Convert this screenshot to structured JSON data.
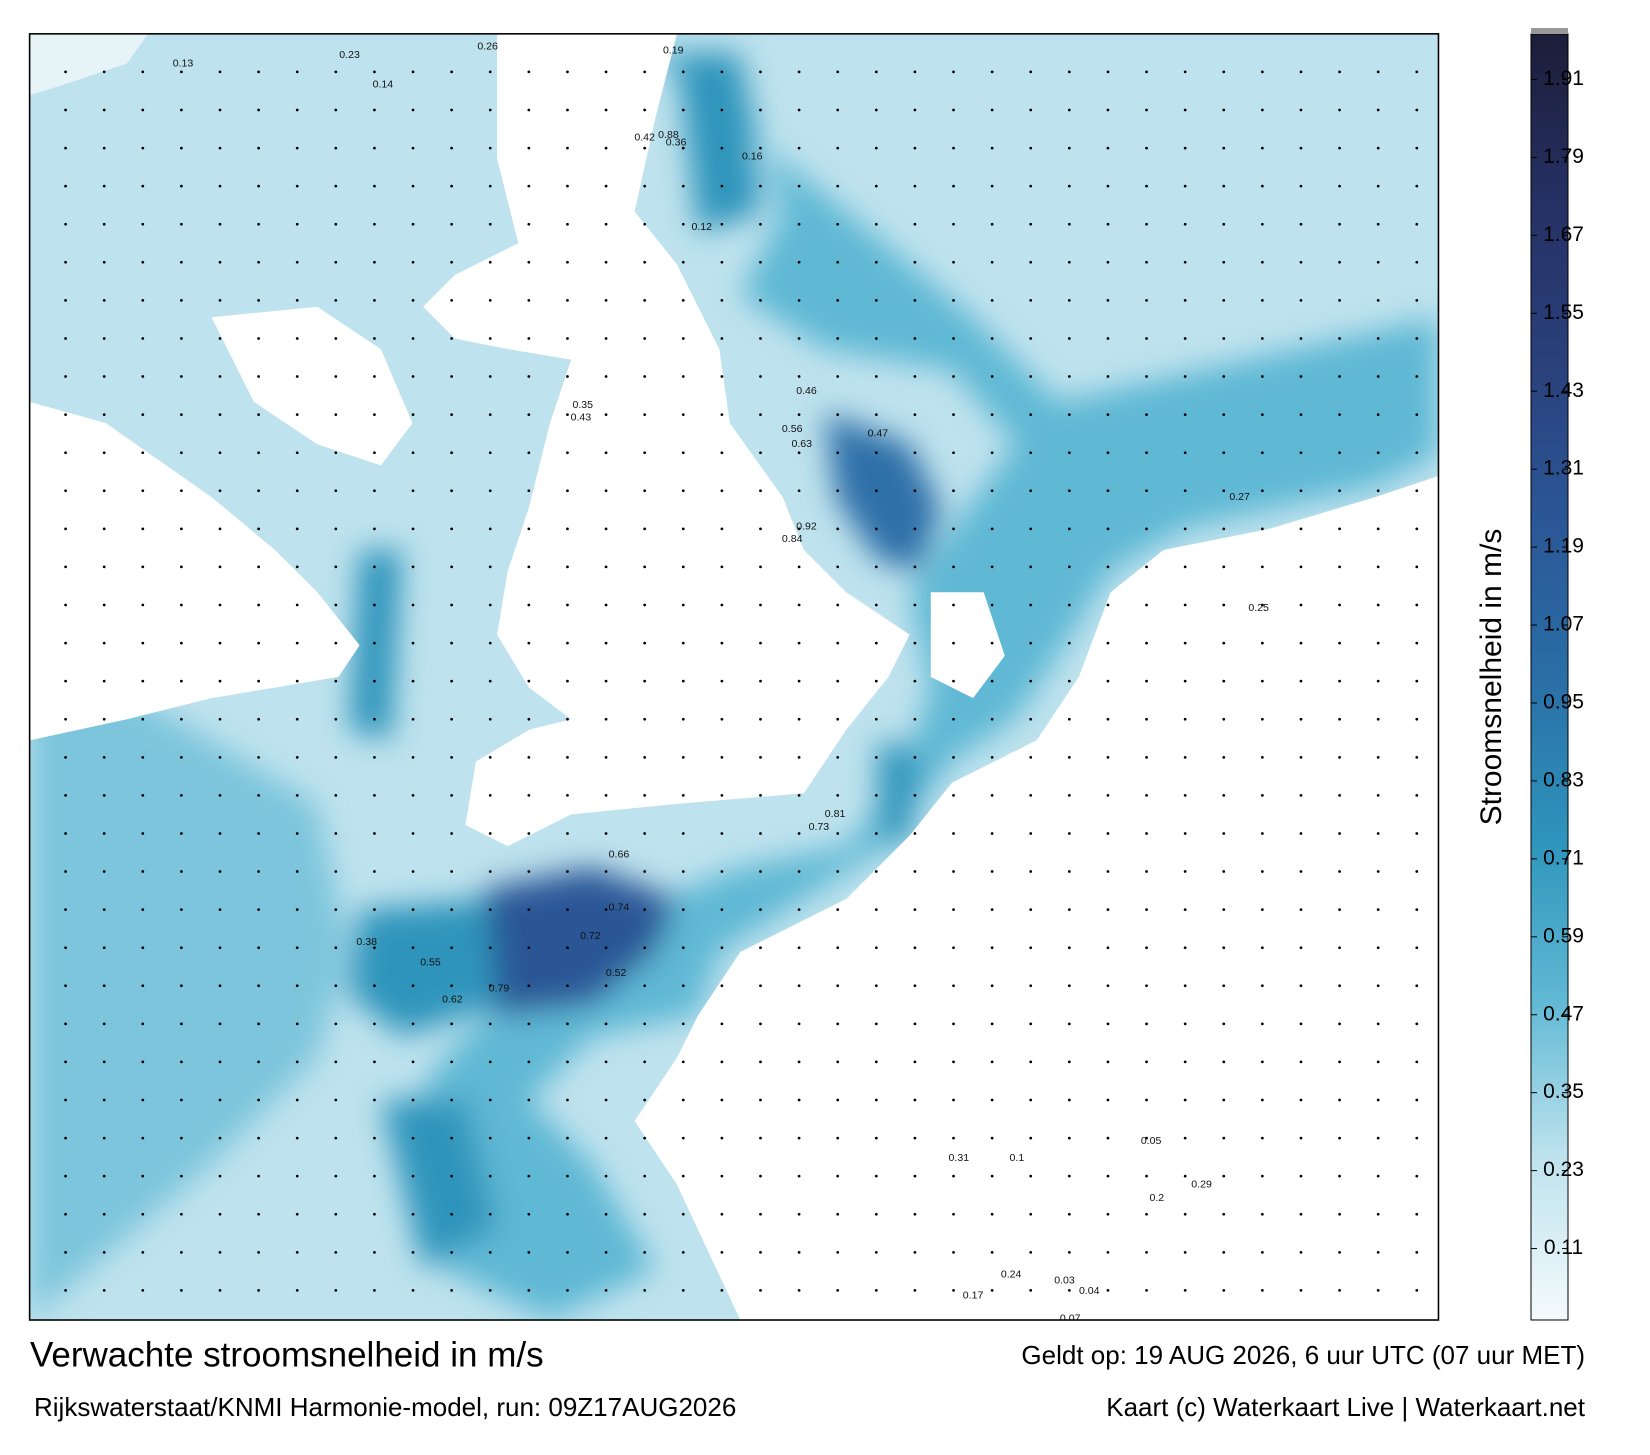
{
  "chart_data": {
    "type": "map",
    "title": "Verwachte stroomsnelheid in m/s",
    "subtitle": "Rijkswaterstaat/KNMI Harmonie-model, run: 09Z17AUG2026",
    "valid_time": "Geldt op: 19 AUG 2026, 6 uur UTC (07 uur MET)",
    "credit": "Kaart (c) Waterkaart Live | Waterkaart.net",
    "colorbar_label": "Stroomsnelheid in m/s",
    "clim": [
      0,
      1.98
    ],
    "cticks": [
      0.11,
      0.23,
      0.35,
      0.47,
      0.59,
      0.71,
      0.83,
      0.95,
      1.07,
      1.19,
      1.31,
      1.43,
      1.55,
      1.67,
      1.79,
      1.91
    ],
    "colors": [
      "#f4fafc",
      "#bfe3ee",
      "#5fb8d4",
      "#2e94bb",
      "#2a6ea6",
      "#2b5696",
      "#2a3f7a",
      "#253062",
      "#1c1d38"
    ],
    "point_labels": [
      "0.13",
      "0.23",
      "0.14",
      "0.26",
      "0.19",
      "0.88",
      "0.42",
      "0.36",
      "0.16",
      "0.12",
      "0.46",
      "0.63",
      "0.92",
      "0.84",
      "0.56",
      "0.47",
      "0.35",
      "0.43",
      "0.52",
      "0.81",
      "0.73",
      "0.66",
      "0.74",
      "0.72",
      "0.79",
      "0.62",
      "0.55",
      "0.38",
      "0.25",
      "0.27",
      "0.29",
      "0.31",
      "0.24",
      "0.2",
      "0.17",
      "0.04",
      "0.03",
      "0.05",
      "0.1",
      "0.07"
    ]
  }
}
